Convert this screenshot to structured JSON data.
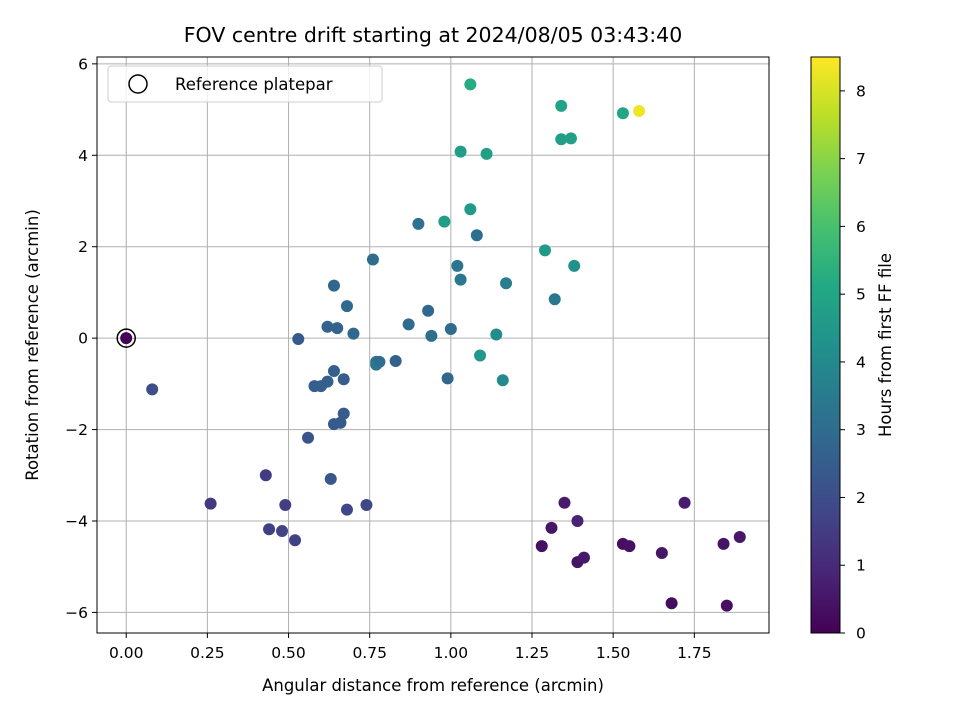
{
  "chart_data": {
    "type": "scatter",
    "title": "FOV centre drift starting at 2024/08/05 03:43:40",
    "xlabel": "Angular distance from reference (arcmin)",
    "ylabel": "Rotation from reference (arcmin)",
    "xlim": [
      -0.09,
      1.98
    ],
    "ylim": [
      -6.45,
      6.15
    ],
    "xticks": [
      0.0,
      0.25,
      0.5,
      0.75,
      1.0,
      1.25,
      1.5,
      1.75
    ],
    "xtick_labels": [
      "0.00",
      "0.25",
      "0.50",
      "0.75",
      "1.00",
      "1.25",
      "1.50",
      "1.75"
    ],
    "yticks": [
      -6,
      -4,
      -2,
      0,
      2,
      4,
      6
    ],
    "ytick_labels": [
      "−6",
      "−4",
      "−2",
      "0",
      "2",
      "4",
      "6"
    ],
    "grid": true,
    "colormap": "viridis",
    "colorbar": {
      "label": "Hours from first FF file",
      "range": [
        0,
        8.5
      ],
      "ticks": [
        0,
        1,
        2,
        3,
        4,
        5,
        6,
        7,
        8
      ],
      "tick_labels": [
        "0",
        "1",
        "2",
        "3",
        "4",
        "5",
        "6",
        "7",
        "8"
      ]
    },
    "legend": {
      "position": "upper-left",
      "entries": [
        {
          "label": "Reference platepar",
          "marker": "open-circle"
        }
      ]
    },
    "reference_point": {
      "x": 0.0,
      "y": 0.0
    },
    "points": [
      {
        "x": 0.0,
        "y": 0.0,
        "h": 0.05
      },
      {
        "x": 1.28,
        "y": -4.55,
        "h": 0.4
      },
      {
        "x": 1.31,
        "y": -4.15,
        "h": 0.5
      },
      {
        "x": 1.35,
        "y": -3.6,
        "h": 0.6
      },
      {
        "x": 1.39,
        "y": -4.0,
        "h": 0.8
      },
      {
        "x": 1.39,
        "y": -4.9,
        "h": 0.45
      },
      {
        "x": 1.41,
        "y": -4.8,
        "h": 0.55
      },
      {
        "x": 1.53,
        "y": -4.5,
        "h": 0.35
      },
      {
        "x": 1.55,
        "y": -4.55,
        "h": 0.4
      },
      {
        "x": 1.65,
        "y": -4.7,
        "h": 0.5
      },
      {
        "x": 1.68,
        "y": -5.8,
        "h": 0.3
      },
      {
        "x": 1.72,
        "y": -3.6,
        "h": 0.65
      },
      {
        "x": 1.84,
        "y": -4.5,
        "h": 0.45
      },
      {
        "x": 1.85,
        "y": -5.85,
        "h": 0.35
      },
      {
        "x": 1.89,
        "y": -4.35,
        "h": 0.55
      },
      {
        "x": 0.08,
        "y": -1.12,
        "h": 2.0
      },
      {
        "x": 0.26,
        "y": -3.62,
        "h": 1.4
      },
      {
        "x": 0.43,
        "y": -3.0,
        "h": 1.5
      },
      {
        "x": 0.44,
        "y": -4.18,
        "h": 1.6
      },
      {
        "x": 0.48,
        "y": -4.22,
        "h": 1.7
      },
      {
        "x": 0.49,
        "y": -3.65,
        "h": 1.55
      },
      {
        "x": 0.52,
        "y": -4.42,
        "h": 1.65
      },
      {
        "x": 0.53,
        "y": -0.02,
        "h": 2.4
      },
      {
        "x": 0.56,
        "y": -2.18,
        "h": 2.2
      },
      {
        "x": 0.58,
        "y": -1.05,
        "h": 2.5
      },
      {
        "x": 0.6,
        "y": -1.05,
        "h": 2.6
      },
      {
        "x": 0.62,
        "y": -0.95,
        "h": 2.55
      },
      {
        "x": 0.62,
        "y": 0.25,
        "h": 2.7
      },
      {
        "x": 0.63,
        "y": -3.08,
        "h": 2.3
      },
      {
        "x": 0.64,
        "y": 1.15,
        "h": 2.8
      },
      {
        "x": 0.64,
        "y": -0.72,
        "h": 2.6
      },
      {
        "x": 0.64,
        "y": -1.88,
        "h": 2.35
      },
      {
        "x": 0.65,
        "y": 0.22,
        "h": 2.75
      },
      {
        "x": 0.66,
        "y": -1.85,
        "h": 2.4
      },
      {
        "x": 0.67,
        "y": -1.65,
        "h": 2.45
      },
      {
        "x": 0.67,
        "y": -0.9,
        "h": 2.5
      },
      {
        "x": 0.68,
        "y": -3.75,
        "h": 1.8
      },
      {
        "x": 0.68,
        "y": 0.7,
        "h": 2.85
      },
      {
        "x": 0.7,
        "y": 0.1,
        "h": 2.9
      },
      {
        "x": 0.74,
        "y": -3.65,
        "h": 1.85
      },
      {
        "x": 0.76,
        "y": 1.72,
        "h": 3.0
      },
      {
        "x": 0.77,
        "y": -0.52,
        "h": 3.1
      },
      {
        "x": 0.77,
        "y": -0.58,
        "h": 3.3
      },
      {
        "x": 0.78,
        "y": -0.52,
        "h": 3.05
      },
      {
        "x": 0.83,
        "y": -0.5,
        "h": 2.6
      },
      {
        "x": 0.87,
        "y": 0.3,
        "h": 3.0
      },
      {
        "x": 0.9,
        "y": 2.5,
        "h": 3.2
      },
      {
        "x": 0.93,
        "y": 0.6,
        "h": 2.9
      },
      {
        "x": 0.94,
        "y": 0.05,
        "h": 3.1
      },
      {
        "x": 0.98,
        "y": 2.55,
        "h": 4.7
      },
      {
        "x": 0.99,
        "y": -0.88,
        "h": 2.8
      },
      {
        "x": 1.0,
        "y": 0.2,
        "h": 3.0
      },
      {
        "x": 1.02,
        "y": 1.58,
        "h": 3.3
      },
      {
        "x": 1.03,
        "y": 1.28,
        "h": 3.4
      },
      {
        "x": 1.03,
        "y": 4.08,
        "h": 4.7
      },
      {
        "x": 1.06,
        "y": 5.55,
        "h": 5.2
      },
      {
        "x": 1.06,
        "y": 2.82,
        "h": 4.6
      },
      {
        "x": 1.08,
        "y": 2.25,
        "h": 3.1
      },
      {
        "x": 1.09,
        "y": -0.38,
        "h": 4.5
      },
      {
        "x": 1.11,
        "y": 4.03,
        "h": 4.8
      },
      {
        "x": 1.14,
        "y": 0.08,
        "h": 4.1
      },
      {
        "x": 1.16,
        "y": -0.92,
        "h": 4.0
      },
      {
        "x": 1.17,
        "y": 1.2,
        "h": 3.6
      },
      {
        "x": 1.29,
        "y": 1.92,
        "h": 4.6
      },
      {
        "x": 1.32,
        "y": 0.85,
        "h": 3.4
      },
      {
        "x": 1.34,
        "y": 5.08,
        "h": 4.9
      },
      {
        "x": 1.34,
        "y": 4.35,
        "h": 4.7
      },
      {
        "x": 1.37,
        "y": 4.37,
        "h": 4.8
      },
      {
        "x": 1.38,
        "y": 1.58,
        "h": 4.2
      },
      {
        "x": 1.53,
        "y": 4.92,
        "h": 5.0
      },
      {
        "x": 1.58,
        "y": 4.97,
        "h": 8.3
      }
    ]
  }
}
